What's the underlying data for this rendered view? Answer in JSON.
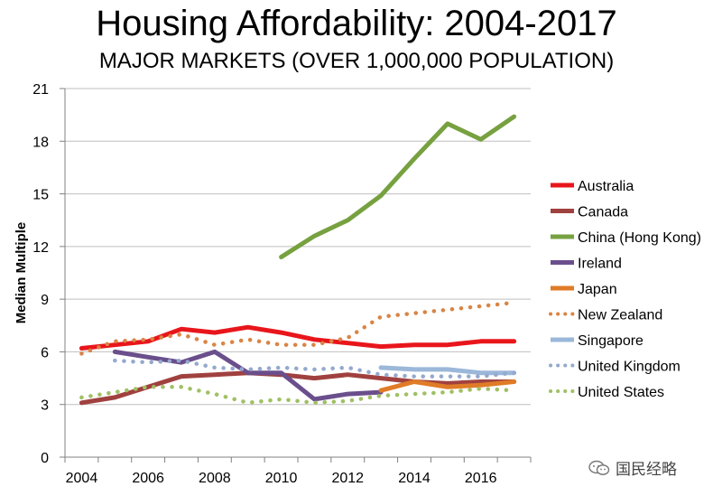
{
  "chart_data": {
    "type": "line",
    "title": "Housing Affordability: 2004-2017",
    "subtitle": "MAJOR MARKETS (OVER 1,000,000 POPULATION)",
    "xlabel": "",
    "ylabel": "Median Multiple",
    "xlim": [
      2004,
      2017
    ],
    "ylim": [
      0,
      21
    ],
    "x_ticks": [
      "2004",
      "2006",
      "2008",
      "2010",
      "2012",
      "2014",
      "2016"
    ],
    "y_ticks": [
      "0",
      "3",
      "6",
      "9",
      "12",
      "15",
      "18",
      "21"
    ],
    "grid": true,
    "legend_position": "right",
    "x": [
      2004,
      2005,
      2006,
      2007,
      2008,
      2009,
      2010,
      2011,
      2012,
      2013,
      2014,
      2015,
      2016,
      2017
    ],
    "series": [
      {
        "name": "Australia",
        "color": "#e8161b",
        "style": "solid",
        "values": [
          6.2,
          6.4,
          6.6,
          7.3,
          7.1,
          7.4,
          7.1,
          6.7,
          6.5,
          6.3,
          6.4,
          6.4,
          6.6,
          6.6
        ]
      },
      {
        "name": "Canada",
        "color": "#a0413f",
        "style": "solid",
        "values": [
          3.1,
          3.4,
          4.0,
          4.6,
          4.7,
          4.8,
          4.7,
          4.5,
          4.7,
          4.5,
          4.3,
          4.2,
          4.3,
          4.3
        ]
      },
      {
        "name": "China (Hong Kong)",
        "color": "#77a140",
        "style": "solid",
        "values": [
          null,
          null,
          null,
          null,
          null,
          null,
          11.4,
          12.6,
          13.5,
          14.9,
          17.0,
          19.0,
          18.1,
          19.4
        ]
      },
      {
        "name": "Ireland",
        "color": "#6a4f8c",
        "style": "solid",
        "values": [
          null,
          6.0,
          5.7,
          5.4,
          6.0,
          4.8,
          4.8,
          3.3,
          3.6,
          3.7,
          null,
          null,
          null,
          null
        ]
      },
      {
        "name": "Japan",
        "color": "#e07b27",
        "style": "solid",
        "values": [
          null,
          null,
          null,
          null,
          null,
          null,
          null,
          null,
          null,
          3.8,
          4.3,
          4.0,
          4.1,
          4.3
        ]
      },
      {
        "name": "New Zealand",
        "color": "#d98545",
        "style": "dotted",
        "values": [
          5.9,
          6.6,
          6.7,
          7.0,
          6.4,
          6.7,
          6.4,
          6.4,
          6.8,
          8.0,
          8.2,
          8.4,
          8.6,
          8.8
        ]
      },
      {
        "name": "Singapore",
        "color": "#9bb7d9",
        "style": "solid",
        "values": [
          null,
          null,
          null,
          null,
          null,
          null,
          null,
          null,
          null,
          5.1,
          5.0,
          5.0,
          4.8,
          4.8
        ]
      },
      {
        "name": "United Kingdom",
        "color": "#94a9cf",
        "style": "dotted",
        "values": [
          null,
          5.5,
          5.4,
          5.5,
          5.1,
          5.0,
          5.1,
          5.0,
          5.1,
          4.7,
          4.6,
          4.6,
          4.6,
          4.8
        ]
      },
      {
        "name": "United States",
        "color": "#9fc063",
        "style": "dotted",
        "values": [
          3.4,
          3.7,
          4.0,
          4.0,
          3.6,
          3.1,
          3.3,
          3.1,
          3.2,
          3.5,
          3.6,
          3.7,
          3.9,
          3.8
        ]
      }
    ]
  },
  "watermark": {
    "text": "国民经略",
    "icon": "wechat-icon"
  }
}
